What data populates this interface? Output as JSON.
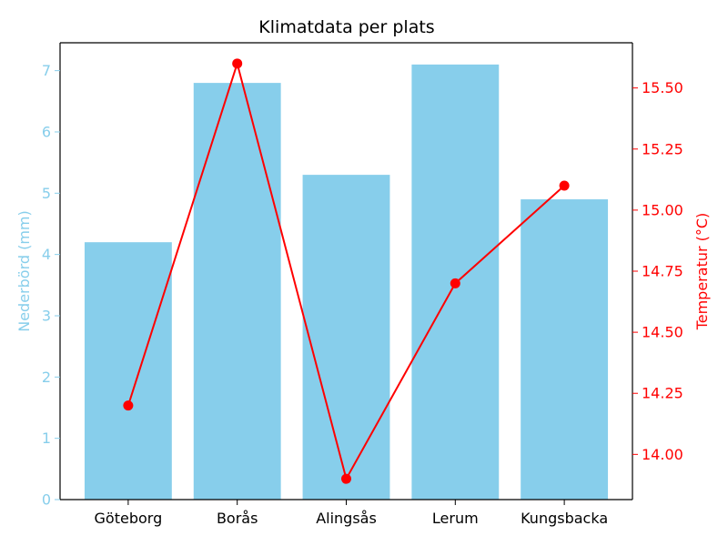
{
  "chart_data": {
    "type": "bar",
    "title": "Klimatdata per plats",
    "xlabel": "",
    "categories": [
      "Göteborg",
      "Borås",
      "Alingsås",
      "Lerum",
      "Kungsbacka"
    ],
    "series": [
      {
        "name": "Nederbörd (mm)",
        "type": "bar",
        "axis": "left",
        "color": "#87ceeb",
        "values": [
          4.2,
          6.8,
          5.3,
          7.1,
          4.9
        ]
      },
      {
        "name": "Temperatur (°C)",
        "type": "line",
        "axis": "right",
        "color": "#ff0000",
        "marker": "circle",
        "values": [
          14.2,
          15.6,
          13.9,
          14.7,
          15.1
        ]
      }
    ],
    "y_left": {
      "label": "Nederbörd (mm)",
      "color": "#87ceeb",
      "ylim": [
        0,
        7.455
      ],
      "ticks": [
        0,
        1,
        2,
        3,
        4,
        5,
        6,
        7
      ],
      "tick_labels": [
        "0",
        "1",
        "2",
        "3",
        "4",
        "5",
        "6",
        "7"
      ]
    },
    "y_right": {
      "label": "Temperatur (°C)",
      "color": "#ff0000",
      "ylim": [
        13.815,
        15.685
      ],
      "ticks": [
        14.0,
        14.25,
        14.5,
        14.75,
        15.0,
        15.25,
        15.5
      ],
      "tick_labels": [
        "14.00",
        "14.25",
        "14.50",
        "14.75",
        "15.00",
        "15.25",
        "15.50"
      ]
    },
    "grid": false,
    "legend": "none"
  }
}
